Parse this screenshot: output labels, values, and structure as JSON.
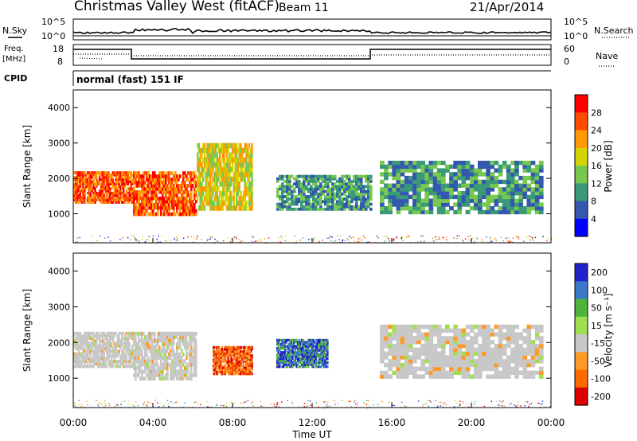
{
  "header": {
    "station": "Christmas Valley West (fitACF)",
    "beam": "Beam 11",
    "date": "21/Apr/2014"
  },
  "side_labels": {
    "nsky": "N.Sky",
    "nsearch": "N.Search",
    "freq_line1": "Freq.",
    "freq_line2": "[MHz]",
    "nave": "Nave",
    "cpid": "CPID",
    "cpid_value": "normal (fast) 151 IF"
  },
  "small_panels": {
    "noise_ticks_left": [
      "10^5",
      "10^0"
    ],
    "noise_ticks_right": [
      "10^5",
      "10^0"
    ],
    "freq_ticks_left": [
      "18",
      "8"
    ],
    "freq_ticks_right": [
      "60",
      "0"
    ]
  },
  "chart_data": [
    {
      "type": "heatmap",
      "parameter": "power",
      "ylabel": "Slant Range [km]",
      "xlabel": "",
      "ylim": [
        180,
        4500
      ],
      "x_ticks": [
        "00:00",
        "04:00",
        "08:00",
        "12:00",
        "16:00",
        "20:00",
        "00:00"
      ],
      "y_ticks": [
        1000,
        2000,
        3000,
        4000
      ],
      "colorbar": {
        "label": "Power [dB]",
        "ticks": [
          "28",
          "24",
          "20",
          "16",
          "12",
          "8",
          "4"
        ]
      },
      "echo_regions": [
        {
          "hours": [
            0.0,
            3.0
          ],
          "range_km": [
            1300,
            2200
          ],
          "level": "high"
        },
        {
          "hours": [
            3.0,
            6.2
          ],
          "range_km": [
            950,
            2200
          ],
          "level": "high"
        },
        {
          "hours": [
            6.2,
            9.0
          ],
          "range_km": [
            1100,
            3000
          ],
          "level": "medium"
        },
        {
          "hours": [
            10.2,
            15.0
          ],
          "range_km": [
            1100,
            2100
          ],
          "level": "low"
        },
        {
          "hours": [
            15.4,
            23.6
          ],
          "range_km": [
            1000,
            2500
          ],
          "level": "low"
        }
      ]
    },
    {
      "type": "heatmap",
      "parameter": "velocity",
      "ylabel": "Slant Range [km]",
      "xlabel": "Time UT",
      "ylim": [
        180,
        4500
      ],
      "x_ticks": [
        "00:00",
        "04:00",
        "08:00",
        "12:00",
        "16:00",
        "20:00",
        "00:00"
      ],
      "y_ticks": [
        1000,
        2000,
        3000,
        4000
      ],
      "colorbar": {
        "label": "Velocity [m s⁻¹]",
        "ticks": [
          "200",
          "100",
          "50",
          "15",
          "-15",
          "-50",
          "-100",
          "-200"
        ]
      },
      "echo_regions": [
        {
          "hours": [
            0.0,
            3.0
          ],
          "range_km": [
            1300,
            2300
          ],
          "velocity": "near zero (ground scatter)"
        },
        {
          "hours": [
            3.0,
            6.2
          ],
          "range_km": [
            950,
            2300
          ],
          "velocity": "near zero with negative streaks"
        },
        {
          "hours": [
            7.0,
            9.0
          ],
          "range_km": [
            1100,
            1900
          ],
          "velocity": "negative (-50 to -200)"
        },
        {
          "hours": [
            10.2,
            12.8
          ],
          "range_km": [
            1300,
            2100
          ],
          "velocity": "positive (+100 to +200)"
        },
        {
          "hours": [
            15.4,
            23.6
          ],
          "range_km": [
            1000,
            2500
          ],
          "velocity": "near zero (ground scatter)"
        }
      ]
    }
  ],
  "colors": {
    "power_scale": [
      "#ff0000",
      "#ff4a00",
      "#ff9a00",
      "#d4d400",
      "#78c850",
      "#3a9a78",
      "#3458b0",
      "#0000ff"
    ],
    "velocity_scale": [
      "#2222cc",
      "#3c78c8",
      "#50b43c",
      "#a0e050",
      "#c8c8c8",
      "#ff9a28",
      "#ff6a00",
      "#dd0000"
    ]
  }
}
